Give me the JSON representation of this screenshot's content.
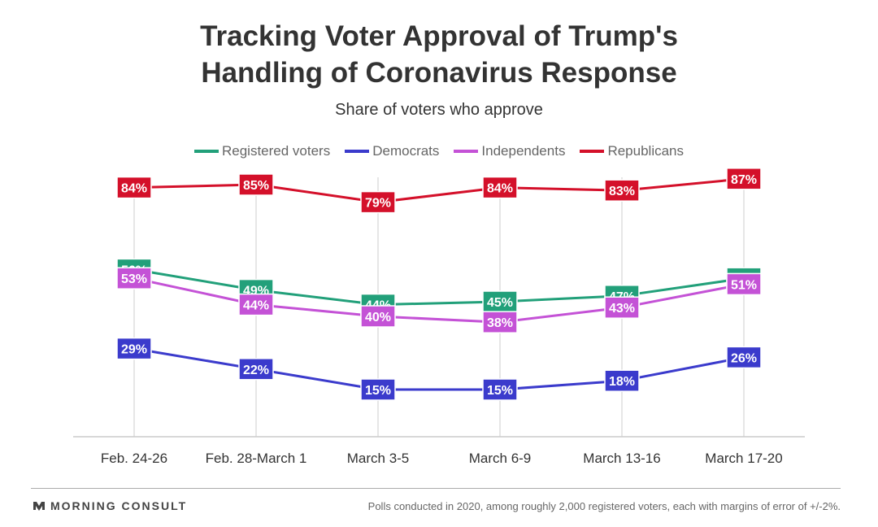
{
  "title": {
    "line1": "Tracking Voter Approval of Trump's",
    "line2": "Handling of Coronavirus Response"
  },
  "subtitle": "Share of voters who approve",
  "footer": {
    "brand": "MORNING CONSULT",
    "brand_icon": "morning-consult-logo-icon",
    "note": "Polls conducted in 2020, among roughly 2,000 registered voters, each with margins of error of +/-2%."
  },
  "chart_data": {
    "type": "line",
    "categories": [
      "Feb. 24-26",
      "Feb. 28-March 1",
      "March 3-5",
      "March 6-9",
      "March 13-16",
      "March 17-20"
    ],
    "ylim": [
      0,
      100
    ],
    "grid": "vertical",
    "legend_position": "top",
    "series": [
      {
        "name": "Registered voters",
        "color": "#22a07a",
        "values": [
          56,
          49,
          44,
          45,
          47,
          53
        ],
        "labels": [
          "56%",
          "49%",
          "44%",
          "45%",
          "47%",
          "53%"
        ]
      },
      {
        "name": "Democrats",
        "color": "#3b3bcc",
        "values": [
          29,
          22,
          15,
          15,
          18,
          26
        ],
        "labels": [
          "29%",
          "22%",
          "15%",
          "15%",
          "18%",
          "26%"
        ]
      },
      {
        "name": "Independents",
        "color": "#c452d6",
        "values": [
          53,
          44,
          40,
          38,
          43,
          51
        ],
        "labels": [
          "53%",
          "44%",
          "40%",
          "38%",
          "43%",
          "51%"
        ]
      },
      {
        "name": "Republicans",
        "color": "#d4102a",
        "values": [
          84,
          85,
          79,
          84,
          83,
          87
        ],
        "labels": [
          "84%",
          "85%",
          "79%",
          "84%",
          "83%",
          "87%"
        ]
      }
    ]
  }
}
